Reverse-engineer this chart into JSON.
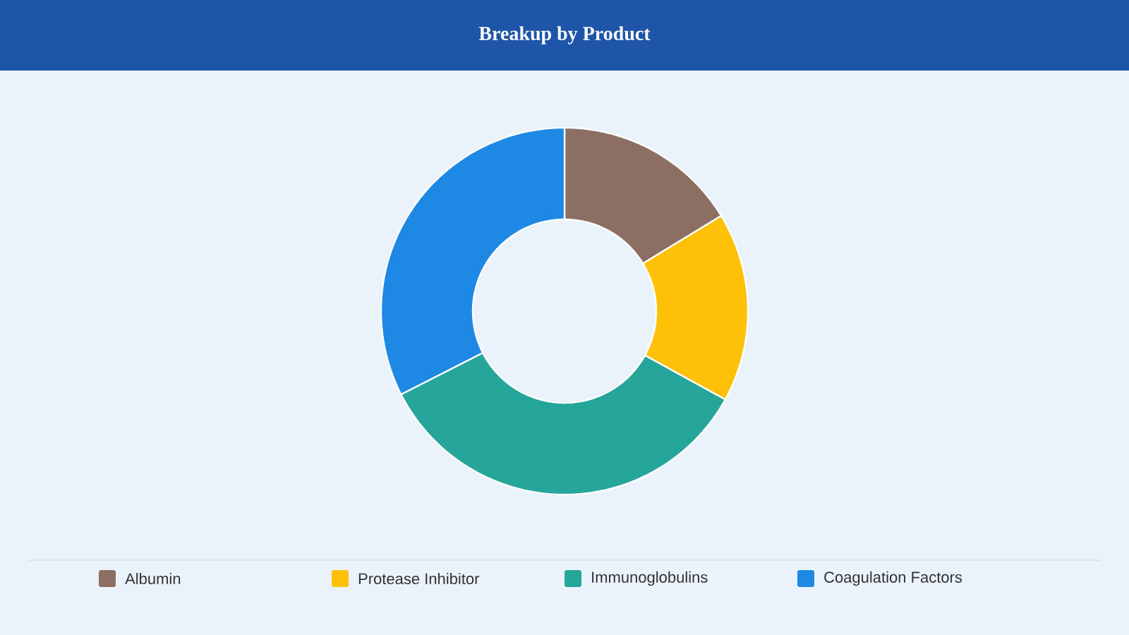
{
  "chart_data": {
    "type": "donut",
    "title": "Breakup by Product",
    "categories": [
      "Albumin",
      "Protease Inhibitor",
      "Immunoglobulins",
      "Coagulation Factors"
    ],
    "values": [
      16.3,
      16.7,
      34.5,
      32.5
    ],
    "colors": [
      "#8d6e63",
      "#ffc107",
      "#26a69a",
      "#1e88e5"
    ],
    "legend": "bottom"
  }
}
